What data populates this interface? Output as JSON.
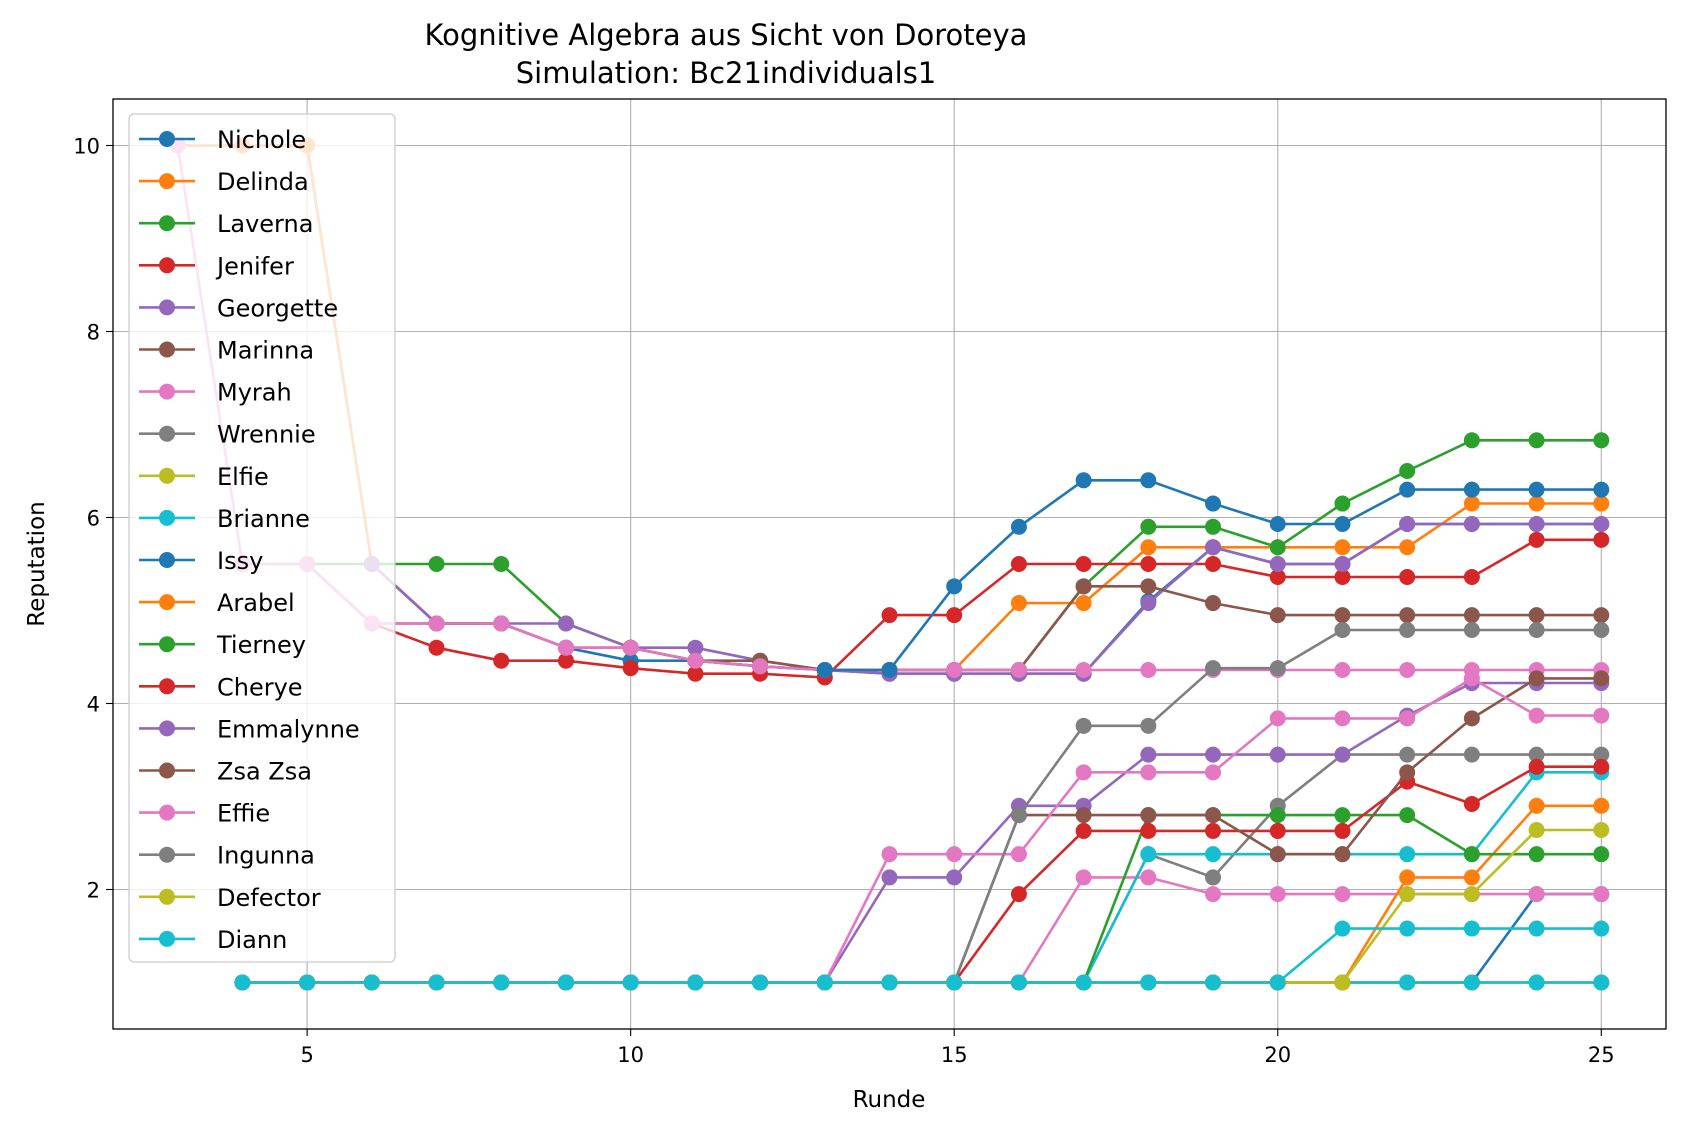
{
  "chart_data": {
    "type": "line",
    "title": "Kognitive Algebra aus Sicht von Doroteya",
    "subtitle": "Simulation: Bc21individuals1",
    "xlabel": "Runde",
    "ylabel": "Reputation",
    "xlim": [
      2,
      26
    ],
    "ylim": [
      0.5,
      10.5
    ],
    "xticks": [
      5,
      10,
      15,
      20,
      25
    ],
    "yticks": [
      2,
      4,
      6,
      8,
      10
    ],
    "grid": true,
    "legend_position": "upper-left",
    "series": [
      {
        "name": "Nichole",
        "color": "#1f77b4",
        "x": [
          3,
          4,
          5,
          6,
          7,
          8,
          9,
          10,
          11,
          12,
          13,
          14,
          15,
          16,
          17,
          18,
          19,
          20,
          21,
          22,
          23,
          24,
          25
        ],
        "y": [
          10,
          10,
          10,
          5.5,
          4.86,
          4.86,
          4.6,
          4.46,
          4.46,
          4.4,
          4.36,
          4.32,
          4.32,
          4.32,
          4.32,
          5.1,
          5.68,
          5.5,
          5.5,
          5.93,
          5.93,
          5.93,
          5.93
        ]
      },
      {
        "name": "Delinda",
        "color": "#ff7f0e",
        "x": [
          3,
          4,
          5,
          6,
          7,
          8,
          9,
          10,
          11,
          12,
          13,
          14,
          15,
          16,
          17,
          18,
          19,
          20,
          21,
          22,
          23,
          24,
          25
        ],
        "y": [
          10,
          10,
          10,
          5.5,
          4.86,
          4.86,
          4.6,
          4.6,
          4.46,
          4.4,
          4.36,
          4.36,
          4.36,
          5.08,
          5.08,
          5.68,
          5.68,
          5.68,
          5.68,
          5.68,
          6.15,
          6.15,
          6.15
        ]
      },
      {
        "name": "Laverna",
        "color": "#2ca02c",
        "x": [
          4,
          5,
          6,
          7,
          8,
          9,
          10,
          11,
          12,
          13,
          14,
          15,
          16,
          17,
          18,
          19,
          20,
          21,
          22,
          23,
          24,
          25
        ],
        "y": [
          5.5,
          5.5,
          5.5,
          5.5,
          5.5,
          4.86,
          4.6,
          4.46,
          4.4,
          4.36,
          4.36,
          4.36,
          4.36,
          5.26,
          5.9,
          5.9,
          5.68,
          6.15,
          6.5,
          6.83,
          6.83,
          6.83
        ]
      },
      {
        "name": "Jenifer",
        "color": "#d62728",
        "x": [
          5,
          6,
          7,
          8,
          9,
          10,
          11,
          12,
          13,
          14,
          15,
          16,
          17,
          18,
          19,
          20,
          21,
          22,
          23,
          24,
          25
        ],
        "y": [
          5.5,
          4.86,
          4.6,
          4.46,
          4.46,
          4.38,
          4.32,
          4.32,
          4.28,
          4.95,
          4.95,
          5.5,
          5.5,
          5.5,
          5.5,
          5.36,
          5.36,
          5.36,
          5.36,
          5.76,
          5.76
        ]
      },
      {
        "name": "Georgette",
        "color": "#9467bd",
        "x": [
          6,
          7,
          8,
          9,
          10,
          11,
          12,
          13,
          14,
          15,
          16,
          17,
          18,
          19,
          20,
          21,
          22,
          23,
          24,
          25
        ],
        "y": [
          5.5,
          4.86,
          4.86,
          4.86,
          4.6,
          4.6,
          4.46,
          4.36,
          4.32,
          4.32,
          4.32,
          4.32,
          5.08,
          5.68,
          5.5,
          5.5,
          5.93,
          5.93,
          5.93,
          5.93
        ]
      },
      {
        "name": "Marinna",
        "color": "#8c564b",
        "x": [
          4,
          5,
          6,
          7,
          8,
          9,
          10,
          11,
          12,
          13,
          14,
          15,
          16,
          17,
          18,
          19,
          20,
          21,
          22,
          23,
          24,
          25
        ],
        "y": [
          5.5,
          5.5,
          4.86,
          4.86,
          4.86,
          4.6,
          4.6,
          4.46,
          4.46,
          4.36,
          4.36,
          4.36,
          4.36,
          5.26,
          5.26,
          5.08,
          4.95,
          4.95,
          4.95,
          4.95,
          4.95,
          4.95
        ]
      },
      {
        "name": "Myrah",
        "color": "#e377c2",
        "x": [
          3,
          4,
          5,
          6,
          7,
          8,
          9,
          10,
          11,
          12,
          13,
          14,
          15,
          16,
          17,
          18,
          19,
          20,
          21,
          22,
          23,
          24,
          25
        ],
        "y": [
          10,
          5.5,
          5.5,
          4.86,
          4.86,
          4.86,
          4.6,
          4.6,
          4.46,
          4.4,
          4.36,
          4.36,
          4.36,
          4.36,
          4.36,
          4.36,
          4.36,
          4.36,
          4.36,
          4.36,
          4.36,
          4.36,
          4.36
        ]
      },
      {
        "name": "Wrennie",
        "color": "#7f7f7f",
        "x": [
          4,
          5,
          6,
          7,
          8,
          9,
          10,
          11,
          12,
          13,
          14,
          15,
          16,
          17,
          18,
          19,
          20,
          21,
          22,
          23,
          24,
          25
        ],
        "y": [
          1,
          1,
          1,
          1,
          1,
          1,
          1,
          1,
          1,
          1,
          1,
          1,
          1,
          1,
          1,
          1,
          1,
          1,
          1,
          1,
          1,
          1
        ]
      },
      {
        "name": "Elfie",
        "color": "#bcbd22",
        "x": [
          7,
          8,
          9,
          10,
          11,
          12,
          13,
          14,
          15,
          16,
          17,
          18,
          19,
          20,
          21,
          22,
          23,
          24,
          25
        ],
        "y": [
          1,
          1,
          1,
          1,
          1,
          1,
          1,
          1,
          1,
          1,
          1,
          1,
          1,
          1,
          1,
          1,
          1,
          1,
          1
        ]
      },
      {
        "name": "Brianne",
        "color": "#17becf",
        "x": [
          9,
          10,
          11,
          12,
          13,
          14,
          15,
          16,
          17,
          18,
          19,
          20,
          21,
          22,
          23,
          24,
          25
        ],
        "y": [
          1,
          1,
          1,
          1,
          1,
          1,
          1,
          1,
          1,
          1,
          1,
          1,
          1,
          1,
          1,
          1,
          1
        ]
      },
      {
        "name": "Issy",
        "color": "#1f77b4",
        "x": [
          13,
          14,
          15,
          16,
          17,
          18,
          19,
          20,
          21,
          22,
          23,
          24,
          25
        ],
        "y": [
          4.36,
          4.36,
          5.26,
          5.9,
          6.4,
          6.4,
          6.15,
          5.93,
          5.93,
          6.3,
          6.3,
          6.3,
          6.3
        ]
      },
      {
        "name": "Arabel",
        "color": "#ff7f0e",
        "x": [
          4,
          5,
          6,
          7,
          8,
          9,
          10,
          11,
          12,
          13,
          14,
          15,
          16,
          17,
          18,
          19,
          20,
          21,
          22,
          23,
          24,
          25
        ],
        "y": [
          1,
          1,
          1,
          1,
          1,
          1,
          1,
          1,
          1,
          1,
          1,
          1,
          1,
          1,
          1,
          1,
          1,
          1,
          2.13,
          2.13,
          2.9,
          2.9
        ]
      },
      {
        "name": "Tierney",
        "color": "#2ca02c",
        "x": [
          4,
          5,
          6,
          7,
          8,
          9,
          10,
          11,
          12,
          13,
          14,
          15,
          16,
          17,
          18,
          19,
          20,
          21,
          22,
          23,
          24,
          25
        ],
        "y": [
          1,
          1,
          1,
          1,
          1,
          1,
          1,
          1,
          1,
          1,
          1,
          1,
          1,
          1,
          2.8,
          2.8,
          2.8,
          2.8,
          2.8,
          2.38,
          2.38,
          2.38
        ]
      },
      {
        "name": "Cherye",
        "color": "#d62728",
        "x": [
          4,
          5,
          6,
          7,
          8,
          9,
          10,
          11,
          12,
          13,
          14,
          15,
          16,
          17,
          18,
          19,
          20,
          21,
          22,
          23,
          24,
          25
        ],
        "y": [
          1,
          1,
          1,
          1,
          1,
          1,
          1,
          1,
          1,
          1,
          1,
          1,
          1.95,
          2.63,
          2.63,
          2.63,
          2.63,
          2.63,
          3.16,
          2.92,
          3.32,
          3.32
        ]
      },
      {
        "name": "Emmalynne",
        "color": "#9467bd",
        "x": [
          4,
          5,
          6,
          7,
          8,
          9,
          10,
          11,
          12,
          13,
          14,
          15,
          16,
          17,
          18,
          19,
          20,
          21,
          22,
          23,
          24,
          25
        ],
        "y": [
          1,
          1,
          1,
          1,
          1,
          1,
          1,
          1,
          1,
          1,
          2.13,
          2.13,
          2.9,
          2.9,
          3.45,
          3.45,
          3.45,
          3.45,
          3.87,
          4.22,
          4.22,
          4.22
        ]
      },
      {
        "name": "Zsa Zsa",
        "color": "#8c564b",
        "x": [
          4,
          5,
          6,
          7,
          8,
          9,
          10,
          11,
          12,
          13,
          14,
          15,
          16,
          17,
          18,
          19,
          20,
          21,
          22,
          23,
          24,
          25
        ],
        "y": [
          1,
          1,
          1,
          1,
          1,
          1,
          1,
          1,
          1,
          1,
          1,
          1,
          2.8,
          2.8,
          2.8,
          2.8,
          2.38,
          2.38,
          3.26,
          3.84,
          4.27,
          4.27
        ]
      },
      {
        "name": "Effie",
        "color": "#e377c2",
        "x": [
          4,
          5,
          6,
          7,
          8,
          9,
          10,
          11,
          12,
          13,
          14,
          15,
          16,
          17,
          18,
          19,
          20,
          21,
          22,
          23,
          24,
          25
        ],
        "y": [
          1,
          1,
          1,
          1,
          1,
          1,
          1,
          1,
          1,
          1,
          2.38,
          2.38,
          2.38,
          3.26,
          3.26,
          3.26,
          3.84,
          3.84,
          3.84,
          4.27,
          3.87,
          3.87
        ]
      },
      {
        "name": "Ingunna",
        "color": "#7f7f7f",
        "x": [
          4,
          5,
          6,
          7,
          8,
          9,
          10,
          11,
          12,
          13,
          14,
          15,
          16,
          17,
          18,
          19,
          20,
          21,
          22,
          23,
          24,
          25
        ],
        "y": [
          1,
          1,
          1,
          1,
          1,
          1,
          1,
          1,
          1,
          1,
          1,
          1,
          2.8,
          3.76,
          3.76,
          4.38,
          4.38,
          4.79,
          4.79,
          4.79,
          4.79,
          4.79
        ]
      },
      {
        "name": "Defector",
        "color": "#bcbd22",
        "x": [
          4,
          5,
          6,
          7,
          8,
          9,
          10,
          11,
          12,
          13,
          14,
          15,
          16,
          17,
          18,
          19,
          20,
          21,
          22,
          23,
          24,
          25
        ],
        "y": [
          1,
          1,
          1,
          1,
          1,
          1,
          1,
          1,
          1,
          1,
          1,
          1,
          1,
          1,
          1,
          1,
          1,
          1,
          1.95,
          1.95,
          2.64,
          2.64
        ]
      },
      {
        "name": "Diann",
        "color": "#17becf",
        "x": [
          4,
          5,
          6,
          7,
          8,
          9,
          10,
          11,
          12,
          13,
          14,
          15,
          16,
          17,
          18,
          19,
          20,
          21,
          22,
          23,
          24,
          25
        ],
        "y": [
          1,
          1,
          1,
          1,
          1,
          1,
          1,
          1,
          1,
          1,
          1,
          1,
          1,
          1,
          1,
          1,
          1,
          1.58,
          1.58,
          1.58,
          1.58,
          1.58
        ]
      }
    ],
    "extra_lines": [
      {
        "color": "#1f77b4",
        "x": [
          4,
          5,
          6,
          7,
          8,
          9,
          10,
          11,
          12,
          13,
          14,
          15,
          16,
          17,
          18,
          19,
          20,
          21,
          22,
          23,
          24,
          25
        ],
        "y": [
          1,
          1,
          1,
          1,
          1,
          1,
          1,
          1,
          1,
          1,
          1,
          1,
          1,
          1,
          1,
          1,
          1,
          1,
          1,
          1,
          1.95,
          1.95
        ]
      },
      {
        "color": "#e377c2",
        "x": [
          4,
          5,
          6,
          7,
          8,
          9,
          10,
          11,
          12,
          13,
          14,
          15,
          16,
          17,
          18,
          19,
          20,
          21,
          22,
          23,
          24,
          25
        ],
        "y": [
          1,
          1,
          1,
          1,
          1,
          1,
          1,
          1,
          1,
          1,
          1,
          1,
          1,
          2.13,
          2.13,
          1.95,
          1.95,
          1.95,
          1.95,
          1.95,
          1.95,
          1.95
        ]
      },
      {
        "color": "#7f7f7f",
        "x": [
          4,
          5,
          6,
          7,
          8,
          9,
          10,
          11,
          12,
          13,
          14,
          15,
          16,
          17,
          18,
          19,
          20,
          21,
          22,
          23,
          24,
          25
        ],
        "y": [
          1,
          1,
          1,
          1,
          1,
          1,
          1,
          1,
          1,
          1,
          1,
          1,
          1,
          1,
          2.38,
          2.13,
          2.9,
          3.45,
          3.45,
          3.45,
          3.45,
          3.45
        ]
      },
      {
        "color": "#17becf",
        "x": [
          4,
          5,
          6,
          7,
          8,
          9,
          10,
          11,
          12,
          13,
          14,
          15,
          16,
          17,
          18,
          19,
          20,
          21,
          22,
          23,
          24,
          25
        ],
        "y": [
          1,
          1,
          1,
          1,
          1,
          1,
          1,
          1,
          1,
          1,
          1,
          1,
          1,
          1,
          2.38,
          2.38,
          2.38,
          2.38,
          2.38,
          2.38,
          3.26,
          3.26
        ]
      }
    ]
  }
}
